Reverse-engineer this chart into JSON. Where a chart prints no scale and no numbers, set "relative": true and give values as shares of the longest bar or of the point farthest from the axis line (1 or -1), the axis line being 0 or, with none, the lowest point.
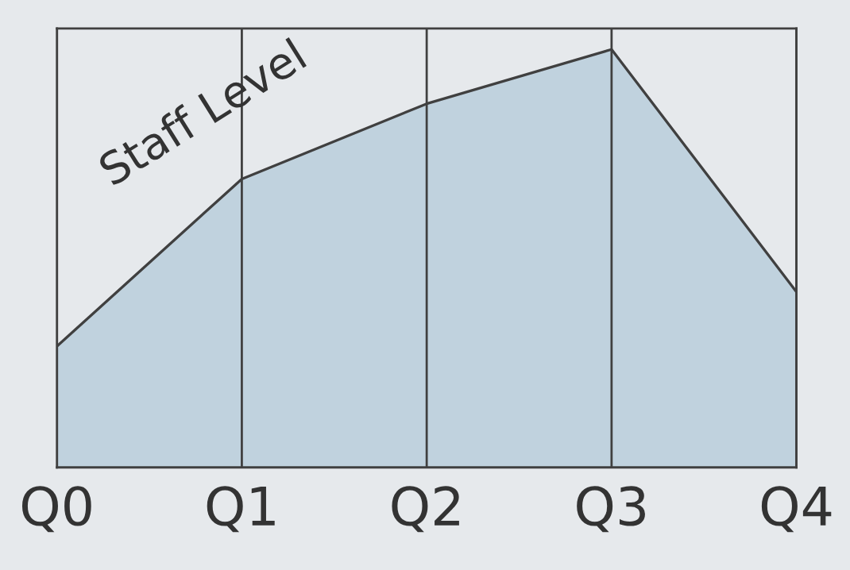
{
  "chart_data": {
    "type": "area",
    "relative": true,
    "categories": [
      "Q0",
      "Q1",
      "Q2",
      "Q3",
      "Q4"
    ],
    "series": [
      {
        "color": "#c0d2de",
        "values": [
          0.29,
          0.69,
          0.87,
          1,
          0.42
        ]
      }
    ],
    "annotations": [
      "Staff Level"
    ],
    "grid": "x"
  }
}
